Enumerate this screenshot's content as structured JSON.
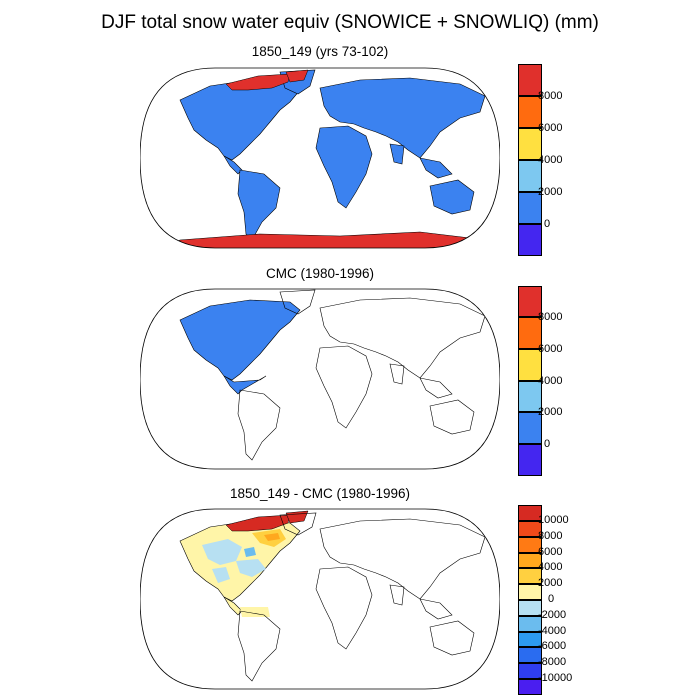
{
  "title": "DJF total snow water equiv (SNOWICE + SNOWLIQ) (mm)",
  "panels": [
    {
      "title": "1850_149 (yrs 73-102)",
      "colorbar": {
        "labels": [
          "8000",
          "6000",
          "4000",
          "2000",
          "0"
        ],
        "colors": [
          "#e0302c",
          "#ff6b0f",
          "#ffe040",
          "#7dc8f0",
          "#3b82f0",
          "#4426f0"
        ],
        "order": "top-to-bottom"
      },
      "land_color": "#3b82f0",
      "high_color": "#e0302c"
    },
    {
      "title": "CMC (1980-1996)",
      "colorbar": {
        "labels": [
          "8000",
          "6000",
          "4000",
          "2000",
          "0"
        ],
        "colors": [
          "#e0302c",
          "#ff6b0f",
          "#ffe040",
          "#7dc8f0",
          "#3b82f0",
          "#4426f0"
        ],
        "order": "top-to-bottom"
      },
      "land_color": "#3b82f0"
    },
    {
      "title": "1850_149 - CMC (1980-1996)",
      "colorbar": {
        "labels": [
          "10000",
          "8000",
          "6000",
          "4000",
          "2000",
          "0",
          "-2000",
          "-4000",
          "-6000",
          "-8000",
          "-10000"
        ],
        "colors": [
          "#d62a22",
          "#f04a1a",
          "#ff7a14",
          "#ffa81e",
          "#ffd040",
          "#fff5a8",
          "#b7e0f2",
          "#6bbcee",
          "#2d9af0",
          "#2a6cf0",
          "#2f3ef0",
          "#4a1ef0"
        ],
        "order": "top-to-bottom"
      }
    }
  ]
}
